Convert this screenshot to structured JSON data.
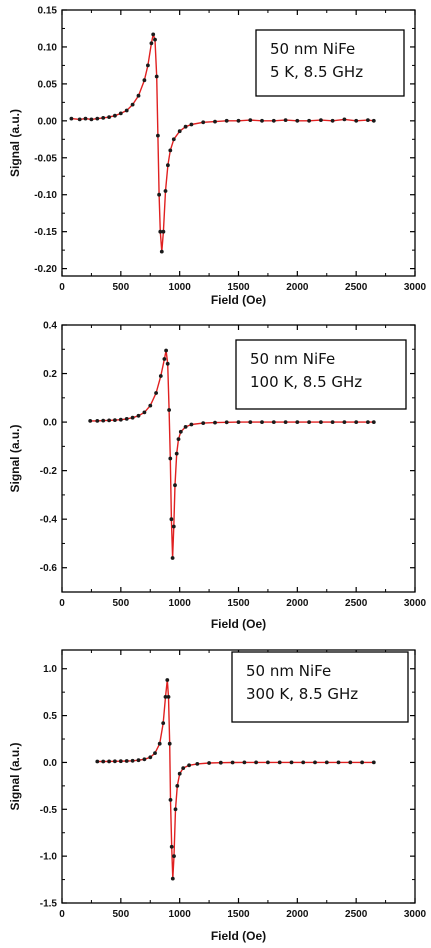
{
  "chart_data": [
    {
      "type": "line",
      "xlabel": "Field (Oe)",
      "ylabel": "Signal (a.u.)",
      "xlim": [
        0,
        3000
      ],
      "ylim": [
        -0.21,
        0.15
      ],
      "xticks": [
        0,
        500,
        1000,
        1500,
        2000,
        2500,
        3000
      ],
      "yticks": [
        -0.2,
        -0.15,
        -0.1,
        -0.05,
        0.0,
        0.05,
        0.1,
        0.15
      ],
      "ytick_labels": [
        "-0.20",
        "-0.15",
        "-0.10",
        "-0.05",
        "0.00",
        "0.05",
        "0.10",
        "0.15"
      ],
      "annotation": [
        "50 nm NiFe",
        "5 K, 8.5 GHz"
      ],
      "series": [
        {
          "style": "points and fit line",
          "points": [
            [
              80,
              0.003
            ],
            [
              150,
              0.002
            ],
            [
              200,
              0.003
            ],
            [
              250,
              0.002
            ],
            [
              300,
              0.003
            ],
            [
              350,
              0.004
            ],
            [
              400,
              0.005
            ],
            [
              450,
              0.007
            ],
            [
              500,
              0.01
            ],
            [
              550,
              0.014
            ],
            [
              600,
              0.022
            ],
            [
              650,
              0.034
            ],
            [
              700,
              0.055
            ],
            [
              730,
              0.075
            ],
            [
              760,
              0.105
            ],
            [
              775,
              0.117
            ],
            [
              790,
              0.11
            ],
            [
              805,
              0.06
            ],
            [
              815,
              -0.02
            ],
            [
              825,
              -0.1
            ],
            [
              835,
              -0.15
            ],
            [
              848,
              -0.177
            ],
            [
              862,
              -0.15
            ],
            [
              880,
              -0.095
            ],
            [
              900,
              -0.06
            ],
            [
              920,
              -0.04
            ],
            [
              950,
              -0.025
            ],
            [
              1000,
              -0.014
            ],
            [
              1050,
              -0.008
            ],
            [
              1100,
              -0.005
            ],
            [
              1200,
              -0.002
            ],
            [
              1300,
              -0.001
            ],
            [
              1400,
              0.0
            ],
            [
              1500,
              0.0
            ],
            [
              1600,
              0.001
            ],
            [
              1700,
              0.0
            ],
            [
              1800,
              0.0
            ],
            [
              1900,
              0.001
            ],
            [
              2000,
              0.0
            ],
            [
              2100,
              0.0
            ],
            [
              2200,
              0.001
            ],
            [
              2300,
              0.0
            ],
            [
              2400,
              0.002
            ],
            [
              2500,
              0.0
            ],
            [
              2600,
              0.001
            ],
            [
              2650,
              0.0
            ]
          ]
        }
      ]
    },
    {
      "type": "line",
      "xlabel": "Field (Oe)",
      "ylabel": "Signal (a.u.)",
      "xlim": [
        0,
        3000
      ],
      "ylim": [
        -0.7,
        0.4
      ],
      "xticks": [
        0,
        500,
        1000,
        1500,
        2000,
        2500,
        3000
      ],
      "yticks": [
        -0.6,
        -0.4,
        -0.2,
        0.0,
        0.2,
        0.4
      ],
      "ytick_labels": [
        "-0.6",
        "-0.4",
        "-0.2",
        "0.0",
        "0.2",
        "0.4"
      ],
      "annotation": [
        "50 nm NiFe",
        "100 K, 8.5 GHz"
      ],
      "series": [
        {
          "style": "points and fit line",
          "points": [
            [
              240,
              0.005
            ],
            [
              300,
              0.005
            ],
            [
              350,
              0.006
            ],
            [
              400,
              0.007
            ],
            [
              450,
              0.008
            ],
            [
              500,
              0.01
            ],
            [
              550,
              0.013
            ],
            [
              600,
              0.018
            ],
            [
              650,
              0.026
            ],
            [
              700,
              0.04
            ],
            [
              750,
              0.068
            ],
            [
              800,
              0.12
            ],
            [
              840,
              0.19
            ],
            [
              870,
              0.26
            ],
            [
              885,
              0.295
            ],
            [
              898,
              0.24
            ],
            [
              910,
              0.05
            ],
            [
              920,
              -0.15
            ],
            [
              930,
              -0.4
            ],
            [
              940,
              -0.56
            ],
            [
              950,
              -0.43
            ],
            [
              960,
              -0.26
            ],
            [
              975,
              -0.13
            ],
            [
              990,
              -0.07
            ],
            [
              1010,
              -0.04
            ],
            [
              1050,
              -0.02
            ],
            [
              1100,
              -0.01
            ],
            [
              1200,
              -0.004
            ],
            [
              1300,
              -0.002
            ],
            [
              1400,
              -0.001
            ],
            [
              1500,
              0.0
            ],
            [
              1600,
              0.0
            ],
            [
              1700,
              0.0
            ],
            [
              1800,
              0.0
            ],
            [
              1900,
              0.0
            ],
            [
              2000,
              0.0
            ],
            [
              2100,
              0.0
            ],
            [
              2200,
              0.0
            ],
            [
              2300,
              0.0
            ],
            [
              2400,
              0.0
            ],
            [
              2500,
              0.0
            ],
            [
              2600,
              0.0
            ],
            [
              2650,
              0.0
            ]
          ]
        }
      ]
    },
    {
      "type": "line",
      "xlabel": "Field (Oe)",
      "ylabel": "Signal (a.u.)",
      "xlim": [
        0,
        3000
      ],
      "ylim": [
        -1.5,
        1.2
      ],
      "xticks": [
        0,
        500,
        1000,
        1500,
        2000,
        2500,
        3000
      ],
      "yticks": [
        -1.5,
        -1.0,
        -0.5,
        0.0,
        0.5,
        1.0
      ],
      "ytick_labels": [
        "-1.5",
        "-1.0",
        "-0.5",
        "0.0",
        "0.5",
        "1.0"
      ],
      "annotation": [
        "50 nm NiFe",
        "300 K, 8.5 GHz"
      ],
      "series": [
        {
          "style": "points and fit line",
          "points": [
            [
              300,
              0.01
            ],
            [
              350,
              0.01
            ],
            [
              400,
              0.011
            ],
            [
              450,
              0.012
            ],
            [
              500,
              0.013
            ],
            [
              550,
              0.015
            ],
            [
              600,
              0.018
            ],
            [
              650,
              0.024
            ],
            [
              700,
              0.034
            ],
            [
              750,
              0.055
            ],
            [
              790,
              0.1
            ],
            [
              830,
              0.2
            ],
            [
              860,
              0.42
            ],
            [
              880,
              0.7
            ],
            [
              895,
              0.88
            ],
            [
              905,
              0.7
            ],
            [
              915,
              0.2
            ],
            [
              922,
              -0.4
            ],
            [
              932,
              -0.9
            ],
            [
              942,
              -1.24
            ],
            [
              952,
              -1.0
            ],
            [
              965,
              -0.5
            ],
            [
              980,
              -0.25
            ],
            [
              1000,
              -0.12
            ],
            [
              1030,
              -0.06
            ],
            [
              1080,
              -0.03
            ],
            [
              1150,
              -0.015
            ],
            [
              1250,
              -0.006
            ],
            [
              1350,
              -0.003
            ],
            [
              1450,
              -0.001
            ],
            [
              1550,
              0.0
            ],
            [
              1650,
              0.0
            ],
            [
              1750,
              0.0
            ],
            [
              1850,
              0.0
            ],
            [
              1950,
              0.0
            ],
            [
              2050,
              0.0
            ],
            [
              2150,
              0.0
            ],
            [
              2250,
              0.0
            ],
            [
              2350,
              0.0
            ],
            [
              2450,
              0.0
            ],
            [
              2550,
              0.0
            ],
            [
              2650,
              0.0
            ]
          ]
        }
      ]
    }
  ],
  "colors": {
    "fit_line": "#e02020",
    "points": "#1a1a1a",
    "axes": "#000000"
  }
}
